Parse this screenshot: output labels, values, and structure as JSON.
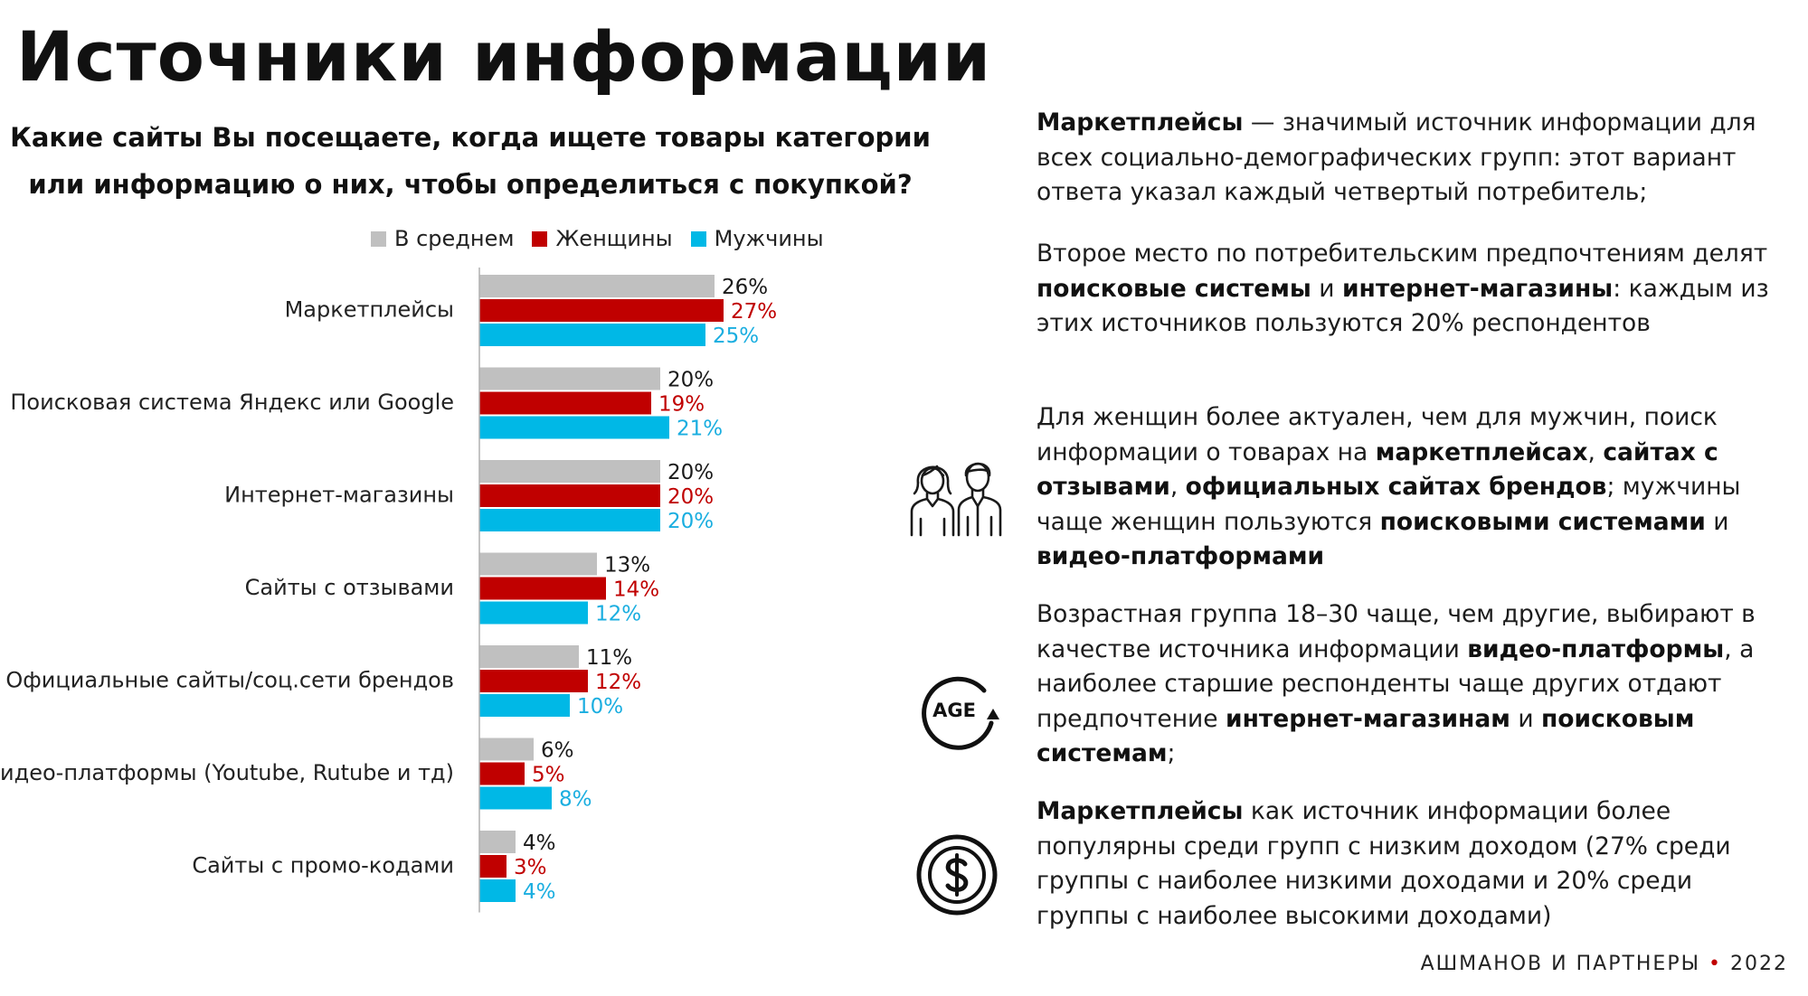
{
  "title": "Источники информации",
  "question": "Какие сайты Вы посещаете, когда ищете товары категории или информацию о них, чтобы определиться с покупкой?",
  "colors": {
    "avg": "#c0c0c0",
    "women": "#c00000",
    "men": "#00b8e6",
    "women_label": "#c00000",
    "men_label": "#1aaee0"
  },
  "chart_data": {
    "type": "bar",
    "orientation": "horizontal",
    "categories": [
      "Маркетплейсы",
      "Поисковая система Яндекс или Google",
      "Интернет-магазины",
      "Сайты с отзывами",
      "Официальные сайты/соц.сети брендов",
      "Видео-платформы (Youtube, Rutube и тд)",
      "Сайты с промо-кодами"
    ],
    "series": [
      {
        "name": "В среднем",
        "values": [
          26,
          20,
          20,
          13,
          11,
          6,
          4
        ],
        "labels": [
          "26%",
          "20%",
          "20%",
          "13%",
          "11%",
          "6%",
          "4%"
        ]
      },
      {
        "name": "Женщины",
        "values": [
          27,
          19,
          20,
          14,
          12,
          5,
          3
        ],
        "labels": [
          "27%",
          "19%",
          "20%",
          "14%",
          "12%",
          "5%",
          "3%"
        ]
      },
      {
        "name": "Мужчины",
        "values": [
          25,
          21,
          20,
          12,
          10,
          8,
          4
        ],
        "labels": [
          "25%",
          "21%",
          "20%",
          "12%",
          "10%",
          "8%",
          "4%"
        ]
      }
    ],
    "legend_position": "top",
    "grid": false
  },
  "paragraphs": [
    [
      {
        "t": "Маркетплейсы",
        "b": true
      },
      {
        "t": " — значимый источник информации для всех социально-демографических групп: этот вариант ответа указал каждый четвертый потребитель;"
      }
    ],
    [
      {
        "t": "Второе место по потребительским предпочтениям делят "
      },
      {
        "t": "поисковые системы",
        "b": true
      },
      {
        "t": " и "
      },
      {
        "t": "интернет-магазины",
        "b": true
      },
      {
        "t": ": каждым из этих источников пользуются 20% респондентов"
      }
    ],
    [
      {
        "t": "Для женщин более актуален, чем для мужчин, поиск информации о товарах на "
      },
      {
        "t": "маркетплейсах",
        "b": true
      },
      {
        "t": ", "
      },
      {
        "t": "сайтах с отзывами",
        "b": true
      },
      {
        "t": ", "
      },
      {
        "t": "официальных сайтах брендов",
        "b": true
      },
      {
        "t": "; мужчины чаще женщин пользуются "
      },
      {
        "t": "поисковыми системами",
        "b": true
      },
      {
        "t": " и "
      },
      {
        "t": "видео-платформами",
        "b": true
      }
    ],
    [
      {
        "t": "Возрастная группа 18–30 чаще, чем другие, выбирают в качестве источника информации "
      },
      {
        "t": "видео-платформы",
        "b": true
      },
      {
        "t": ", а наиболее старшие респонденты чаще других отдают предпочтение "
      },
      {
        "t": "интернет-магазинам",
        "b": true
      },
      {
        "t": " и "
      },
      {
        "t": "поисковым системам",
        "b": true
      },
      {
        "t": ";"
      }
    ],
    [
      {
        "t": "Маркетплейсы",
        "b": true
      },
      {
        "t": " как источник информации более популярны среди групп с низким доходом (27% среди группы с наиболее низкими доходами и 20% среди группы с наиболее высокими доходами)"
      }
    ]
  ],
  "icons": {
    "people": "people-icon",
    "age": "age-icon",
    "dollar": "dollar-coin-icon",
    "age_text": "AGE"
  },
  "footer": {
    "brand": "АШМАНОВ И ПАРТНЕРЫ",
    "dot": "•",
    "year": "2022"
  }
}
